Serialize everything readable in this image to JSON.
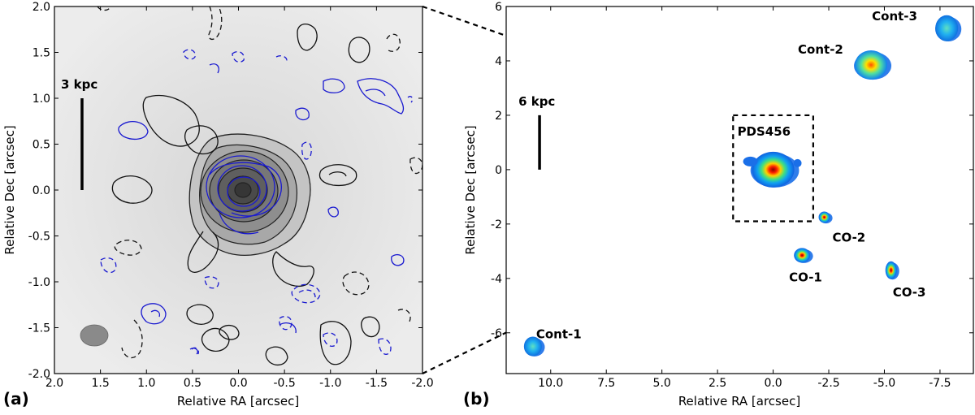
{
  "figure": {
    "panel_a_label": "(a)",
    "panel_b_label": "(b)"
  },
  "chart_data": [
    {
      "type": "contour",
      "panel": "a",
      "xlabel": "Relative RA [arcsec]",
      "ylabel": "Relative Dec [arcsec]",
      "xlim": [
        2.0,
        -2.0
      ],
      "ylim": [
        -2.0,
        2.0
      ],
      "xticks": [
        "2.0",
        "1.5",
        "1.0",
        "0.5",
        "0.0",
        "-0.5",
        "-1.0",
        "-1.5",
        "-2.0"
      ],
      "yticks": [
        "-2.0",
        "-1.5",
        "-1.0",
        "-0.5",
        "0.0",
        "0.5",
        "1.0",
        "1.5",
        "2.0"
      ],
      "scalebar": {
        "label": "3 kpc",
        "x": 1.7,
        "y_start": 0.0,
        "y_end": 1.0
      },
      "core_center": [
        0.0,
        0.0
      ],
      "beam_center": [
        1.6,
        -1.58
      ]
    },
    {
      "type": "scatter",
      "panel": "b",
      "xlabel": "Relative RA [arcsec]",
      "ylabel": "Relative Dec [arcsec]",
      "xlim": [
        12.0,
        -9.0
      ],
      "ylim": [
        -7.5,
        6.0
      ],
      "xticks": [
        "10.0",
        "7.5",
        "5.0",
        "2.5",
        "0.0",
        "-2.5",
        "-5.0",
        "-7.5"
      ],
      "yticks": [
        "-6",
        "-4",
        "-2",
        "0",
        "2",
        "4",
        "6"
      ],
      "scalebar": {
        "label": "6 kpc",
        "x": 10.5,
        "y_start": 0.0,
        "y_end": 2.0
      },
      "zoom_box": {
        "x": [
          1.8,
          -1.8
        ],
        "y": [
          -1.9,
          2.0
        ]
      },
      "sources": [
        {
          "name": "PDS456",
          "x": 0.0,
          "y": 0.0
        },
        {
          "name": "CO-1",
          "x": -1.3,
          "y": -3.15
        },
        {
          "name": "CO-2",
          "x": -2.3,
          "y": -1.75
        },
        {
          "name": "CO-3",
          "x": -5.3,
          "y": -3.7
        },
        {
          "name": "Cont-1",
          "x": 10.8,
          "y": -6.5
        },
        {
          "name": "Cont-2",
          "x": -4.4,
          "y": 3.85
        },
        {
          "name": "Cont-3",
          "x": -7.8,
          "y": 5.2
        }
      ]
    }
  ]
}
